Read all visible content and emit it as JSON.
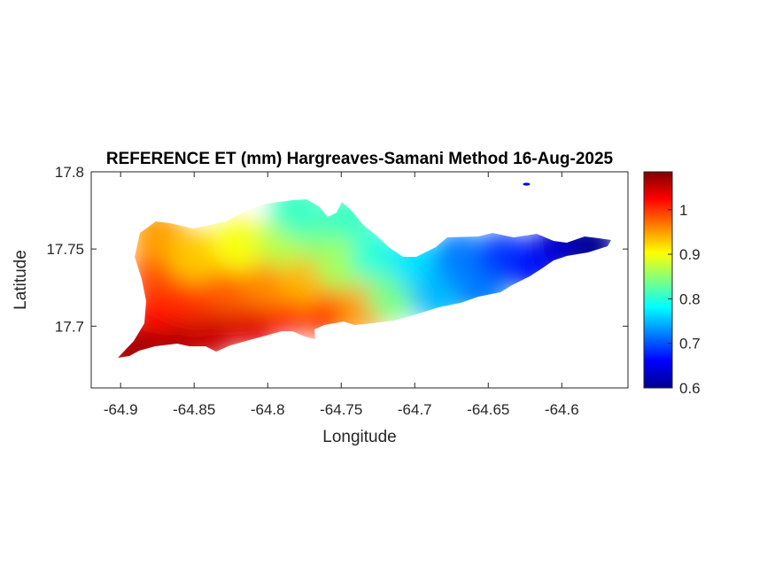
{
  "chart_data": {
    "type": "heatmap",
    "title": "REFERENCE ET (mm) Hargreaves-Samani Method  16-Aug-2025",
    "xlabel": "Longitude",
    "ylabel": "Latitude",
    "xlim": [
      -64.92,
      -64.555
    ],
    "ylim": [
      17.66,
      17.8
    ],
    "xticks": [
      -64.9,
      -64.85,
      -64.8,
      -64.75,
      -64.7,
      -64.65,
      -64.6
    ],
    "xtick_labels": [
      "-64.9",
      "-64.85",
      "-64.8",
      "-64.75",
      "-64.7",
      "-64.65",
      "-64.6"
    ],
    "yticks": [
      17.7,
      17.75,
      17.8
    ],
    "ytick_labels": [
      "17.7",
      "17.75",
      "17.8"
    ],
    "colormap": "jet",
    "clim": [
      0.6,
      1.085
    ],
    "colorbar_ticks": [
      0.6,
      0.7,
      0.8,
      0.9,
      1.0
    ],
    "colorbar_tick_labels": [
      "0.6",
      "0.7",
      "0.8",
      "0.9",
      "1"
    ],
    "grid": false,
    "samples": [
      {
        "lon": -64.895,
        "lat": 17.682,
        "value": 1.06
      },
      {
        "lon": -64.88,
        "lat": 17.692,
        "value": 1.07
      },
      {
        "lon": -64.86,
        "lat": 17.692,
        "value": 1.07
      },
      {
        "lon": -64.84,
        "lat": 17.695,
        "value": 1.05
      },
      {
        "lon": -64.81,
        "lat": 17.703,
        "value": 1.04
      },
      {
        "lon": -64.785,
        "lat": 17.712,
        "value": 1.02
      },
      {
        "lon": -64.76,
        "lat": 17.71,
        "value": 1.0
      },
      {
        "lon": -64.735,
        "lat": 17.712,
        "value": 0.95
      },
      {
        "lon": -64.875,
        "lat": 17.712,
        "value": 1.02
      },
      {
        "lon": -64.875,
        "lat": 17.735,
        "value": 0.99
      },
      {
        "lon": -64.875,
        "lat": 17.758,
        "value": 0.95
      },
      {
        "lon": -64.85,
        "lat": 17.72,
        "value": 1.0
      },
      {
        "lon": -64.825,
        "lat": 17.725,
        "value": 0.98
      },
      {
        "lon": -64.8,
        "lat": 17.728,
        "value": 0.96
      },
      {
        "lon": -64.775,
        "lat": 17.73,
        "value": 0.94
      },
      {
        "lon": -64.85,
        "lat": 17.745,
        "value": 0.93
      },
      {
        "lon": -64.82,
        "lat": 17.752,
        "value": 0.9
      },
      {
        "lon": -64.79,
        "lat": 17.755,
        "value": 0.87
      },
      {
        "lon": -64.76,
        "lat": 17.758,
        "value": 0.84
      },
      {
        "lon": -64.78,
        "lat": 17.775,
        "value": 0.81
      },
      {
        "lon": -64.745,
        "lat": 17.77,
        "value": 0.81
      },
      {
        "lon": -64.75,
        "lat": 17.74,
        "value": 0.86
      },
      {
        "lon": -64.725,
        "lat": 17.745,
        "value": 0.8
      },
      {
        "lon": -64.715,
        "lat": 17.72,
        "value": 0.84
      },
      {
        "lon": -64.7,
        "lat": 17.74,
        "value": 0.77
      },
      {
        "lon": -64.685,
        "lat": 17.72,
        "value": 0.75
      },
      {
        "lon": -64.67,
        "lat": 17.745,
        "value": 0.72
      },
      {
        "lon": -64.655,
        "lat": 17.725,
        "value": 0.72
      },
      {
        "lon": -64.64,
        "lat": 17.745,
        "value": 0.69
      },
      {
        "lon": -64.62,
        "lat": 17.74,
        "value": 0.67
      },
      {
        "lon": -64.6,
        "lat": 17.752,
        "value": 0.64
      },
      {
        "lon": -64.58,
        "lat": 17.752,
        "value": 0.61
      },
      {
        "lon": -64.624,
        "lat": 17.792,
        "value": 0.64
      }
    ]
  }
}
